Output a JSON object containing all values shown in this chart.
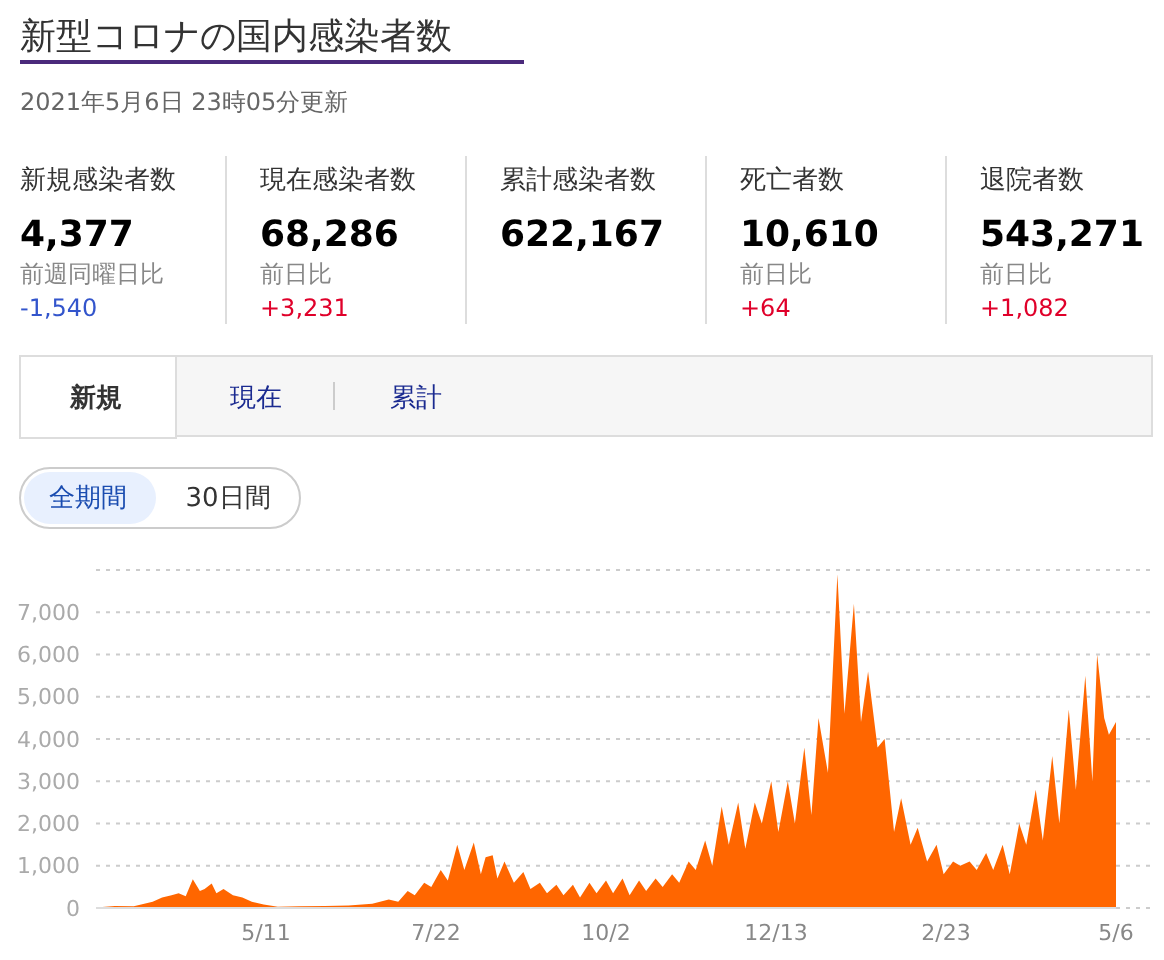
{
  "chart_data": [
    {
      "type": "other",
      "title": "新型コロナの国内感染者数",
      "subtitle": "2021年5月6日 23時05分更新",
      "annotations": [
        "新規感染者数",
        "現在感染者数",
        "累計感染者数",
        "死亡者数",
        "退院者数",
        "4,377",
        "68,286",
        "622,167",
        "10,610",
        "543,271",
        "前週同曜日比",
        "-1,540",
        "前日比",
        "+3,231",
        "前日比",
        "+64",
        "前日比",
        "+1,082",
        "新規",
        "現在",
        "累計",
        "全期間",
        "30日間"
      ]
    },
    {
      "type": "area",
      "xlim": [
        "2020-02-29",
        "2021-05-06"
      ],
      "xticks": [
        {
          "value": "2020-05-11",
          "label": "5/11"
        },
        {
          "value": "2020-07-22",
          "label": "7/22"
        },
        {
          "value": "2020-10-02",
          "label": "10/2"
        },
        {
          "value": "2020-12-13",
          "label": "12/13"
        },
        {
          "value": "2021-02-23",
          "label": "2/23"
        },
        {
          "value": "2021-05-06",
          "label": "5/6"
        }
      ],
      "ylim": [
        0,
        8000
      ],
      "yticks": [
        0,
        {
          "value": 1000,
          "label": "1,000"
        },
        {
          "value": 2000,
          "label": "2,000"
        },
        {
          "value": 3000,
          "label": "3,000"
        },
        {
          "value": 4000,
          "label": "4,000"
        },
        {
          "value": 5000,
          "label": "5,000"
        },
        {
          "value": 6000,
          "label": "6,000"
        },
        {
          "value": 7000,
          "label": "7,000"
        },
        {
          "value": 8000,
          "label": null
        }
      ],
      "grid": "y",
      "x": [
        "2020-02-29",
        "2020-03-08",
        "2020-03-16",
        "2020-03-24",
        "2020-03-28",
        "2020-04-01",
        "2020-04-04",
        "2020-04-07",
        "2020-04-10",
        "2020-04-13",
        "2020-04-15",
        "2020-04-18",
        "2020-04-20",
        "2020-04-23",
        "2020-04-27",
        "2020-05-01",
        "2020-05-05",
        "2020-05-10",
        "2020-05-16",
        "2020-05-25",
        "2020-06-05",
        "2020-06-15",
        "2020-06-25",
        "2020-07-02",
        "2020-07-06",
        "2020-07-10",
        "2020-07-13",
        "2020-07-17",
        "2020-07-20",
        "2020-07-24",
        "2020-07-27",
        "2020-07-31",
        "2020-08-03",
        "2020-08-07",
        "2020-08-10",
        "2020-08-12",
        "2020-08-15",
        "2020-08-17",
        "2020-08-20",
        "2020-08-24",
        "2020-08-28",
        "2020-08-31",
        "2020-09-04",
        "2020-09-07",
        "2020-09-11",
        "2020-09-14",
        "2020-09-18",
        "2020-09-21",
        "2020-09-25",
        "2020-09-28",
        "2020-10-02",
        "2020-10-05",
        "2020-10-09",
        "2020-10-12",
        "2020-10-16",
        "2020-10-19",
        "2020-10-23",
        "2020-10-26",
        "2020-10-30",
        "2020-11-02",
        "2020-11-06",
        "2020-11-09",
        "2020-11-13",
        "2020-11-16",
        "2020-11-20",
        "2020-11-23",
        "2020-11-27",
        "2020-11-30",
        "2020-12-04",
        "2020-12-07",
        "2020-12-11",
        "2020-12-14",
        "2020-12-18",
        "2020-12-21",
        "2020-12-25",
        "2020-12-28",
        "2020-12-31",
        "2021-01-04",
        "2021-01-08",
        "2021-01-11",
        "2021-01-15",
        "2021-01-18",
        "2021-01-21",
        "2021-01-25",
        "2021-01-28",
        "2021-02-01",
        "2021-02-04",
        "2021-02-08",
        "2021-02-11",
        "2021-02-15",
        "2021-02-19",
        "2021-02-22",
        "2021-02-26",
        "2021-03-01",
        "2021-03-05",
        "2021-03-08",
        "2021-03-12",
        "2021-03-15",
        "2021-03-19",
        "2021-03-22",
        "2021-03-26",
        "2021-03-29",
        "2021-04-02",
        "2021-04-05",
        "2021-04-09",
        "2021-04-12",
        "2021-04-16",
        "2021-04-19",
        "2021-04-23",
        "2021-04-26",
        "2021-04-28",
        "2021-05-01",
        "2021-05-03",
        "2021-05-06"
      ],
      "series": [
        {
          "color": "#ff6600",
          "values": [
            10,
            50,
            40,
            150,
            250,
            300,
            350,
            280,
            680,
            400,
            450,
            580,
            350,
            450,
            300,
            250,
            150,
            80,
            30,
            40,
            50,
            60,
            100,
            200,
            150,
            400,
            300,
            600,
            500,
            900,
            650,
            1500,
            900,
            1550,
            800,
            1200,
            1250,
            700,
            1100,
            600,
            850,
            450,
            600,
            350,
            550,
            300,
            550,
            250,
            600,
            350,
            650,
            350,
            700,
            300,
            650,
            400,
            700,
            500,
            800,
            600,
            1100,
            900,
            1600,
            1000,
            2400,
            1500,
            2500,
            1400,
            2500,
            2000,
            3000,
            1800,
            3000,
            2000,
            3800,
            2200,
            4500,
            3200,
            7900,
            4600,
            7200,
            4400,
            5600,
            3800,
            4000,
            1800,
            2600,
            1500,
            1900,
            1100,
            1500,
            800,
            1100,
            1000,
            1100,
            900,
            1300,
            900,
            1500,
            800,
            2000,
            1500,
            2800,
            1600,
            3600,
            2000,
            4700,
            2800,
            5500,
            3000,
            6000,
            4500,
            4100,
            4400
          ]
        }
      ]
    }
  ]
}
